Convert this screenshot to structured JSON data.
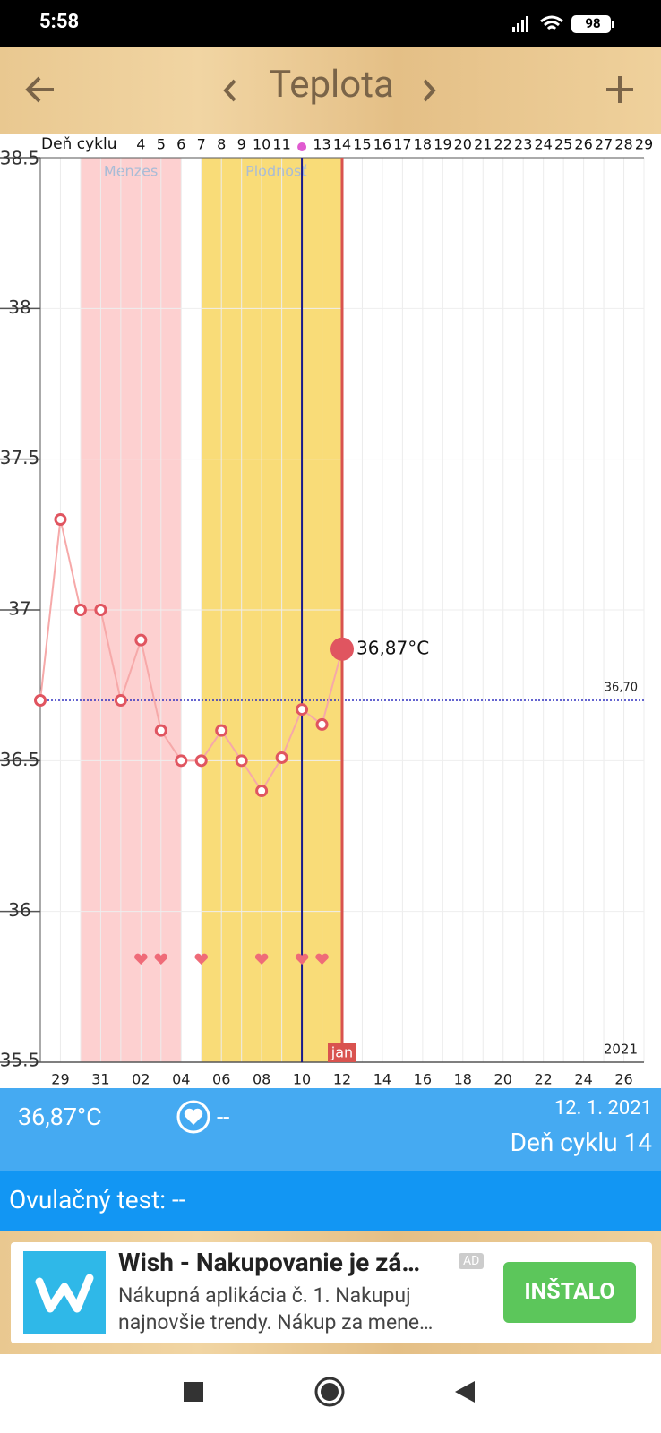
{
  "status_bar": {
    "time": "5:58",
    "battery": "98"
  },
  "header": {
    "title": "Teplota"
  },
  "chart_data": {
    "type": "line",
    "cycle_label": "Deň cyklu",
    "cycle_days": [
      null,
      null,
      null,
      null,
      null,
      4,
      5,
      6,
      7,
      8,
      9,
      10,
      11,
      null,
      13,
      14,
      15,
      16,
      17,
      18,
      19,
      20,
      21,
      22,
      23,
      24,
      25,
      26,
      27,
      28,
      29
    ],
    "categories": [
      null,
      "29",
      null,
      "31",
      null,
      "02",
      null,
      "04",
      null,
      "06",
      null,
      "08",
      null,
      "10",
      null,
      "12",
      null,
      "14",
      null,
      "16",
      null,
      "18",
      null,
      "20",
      null,
      "22",
      null,
      "24",
      null,
      "26",
      null
    ],
    "values": [
      36.7,
      37.3,
      37.0,
      37.0,
      36.7,
      36.9,
      36.6,
      36.5,
      36.5,
      36.6,
      36.5,
      36.4,
      36.51,
      36.67,
      36.62,
      36.87,
      null,
      null,
      null,
      null,
      null,
      null,
      null,
      null,
      null,
      null,
      null,
      null,
      null,
      null,
      null
    ],
    "value_labels": [
      null,
      null,
      null,
      null,
      null,
      null,
      null,
      null,
      null,
      null,
      null,
      null,
      null,
      null,
      null,
      "36,87°C",
      null,
      null,
      null,
      null,
      null,
      null,
      null,
      null,
      null,
      null,
      null,
      null,
      null,
      null,
      null
    ],
    "color": "#e05560",
    "ylim": [
      35.5,
      38.5
    ],
    "yticks": [
      35.5,
      36,
      36.5,
      37,
      37.5,
      38,
      38.5
    ],
    "grid": true,
    "bands": [
      {
        "label": "Menzes",
        "color": "#fdd0d0"
      },
      {
        "label": "Plodnosť",
        "color": "#f9dc78"
      }
    ],
    "reference_line": {
      "value": 36.7,
      "label": "36,70"
    },
    "month_label": "jan",
    "year_label": "2021"
  },
  "info": {
    "temperature": "36,87°C",
    "intercourse": "--",
    "date": "12. 1. 2021",
    "cycle_day": "Deň cyklu 14",
    "ovulation_test": "Ovulačný test: --"
  },
  "ad": {
    "title": "Wish - Nakupovanie je zá…",
    "badge": "AD",
    "line1": "Nákupná aplikácia č. 1. Nakupuj",
    "line2": "najnovšie trendy. Nákup za mene…",
    "button": "INŠTALO"
  }
}
